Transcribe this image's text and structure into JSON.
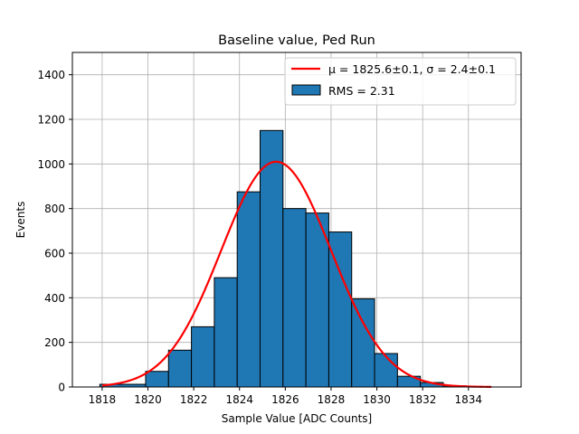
{
  "chart_data": {
    "type": "bar",
    "title": "Baseline value, Ped Run",
    "xlabel": "Sample Value [ADC Counts]",
    "ylabel": "Events",
    "xlim": [
      1816.7,
      1836.3
    ],
    "ylim": [
      0,
      1500
    ],
    "xticks": [
      1818,
      1820,
      1822,
      1824,
      1826,
      1828,
      1830,
      1832,
      1834
    ],
    "yticks": [
      0,
      200,
      400,
      600,
      800,
      1000,
      1200,
      1400
    ],
    "grid": true,
    "legend_position": "top-right",
    "histogram": {
      "bin_edges": [
        1817.9,
        1819.9,
        1820.9,
        1821.9,
        1822.9,
        1823.9,
        1824.9,
        1825.9,
        1826.9,
        1827.9,
        1828.9,
        1829.9,
        1830.9,
        1831.9,
        1832.9,
        1833.9
      ],
      "counts": [
        12,
        70,
        165,
        270,
        490,
        875,
        1150,
        800,
        780,
        695,
        395,
        150,
        48,
        20,
        5
      ],
      "legend_label": "RMS = 2.31",
      "face_color": "#1f77b4",
      "edge_color": "#000000"
    },
    "fit": {
      "legend_label": "$\\mu = 1825.6 \\pm 0.1$, $\\sigma = 2.4 \\pm 0.1$",
      "legend_label_display": "μ = 1825.6±0.1, σ = 2.4±0.1",
      "mu": 1825.6,
      "sigma": 2.4,
      "amplitude": 1010,
      "x_range": [
        1818,
        1835
      ],
      "color": "#ff0000"
    }
  }
}
